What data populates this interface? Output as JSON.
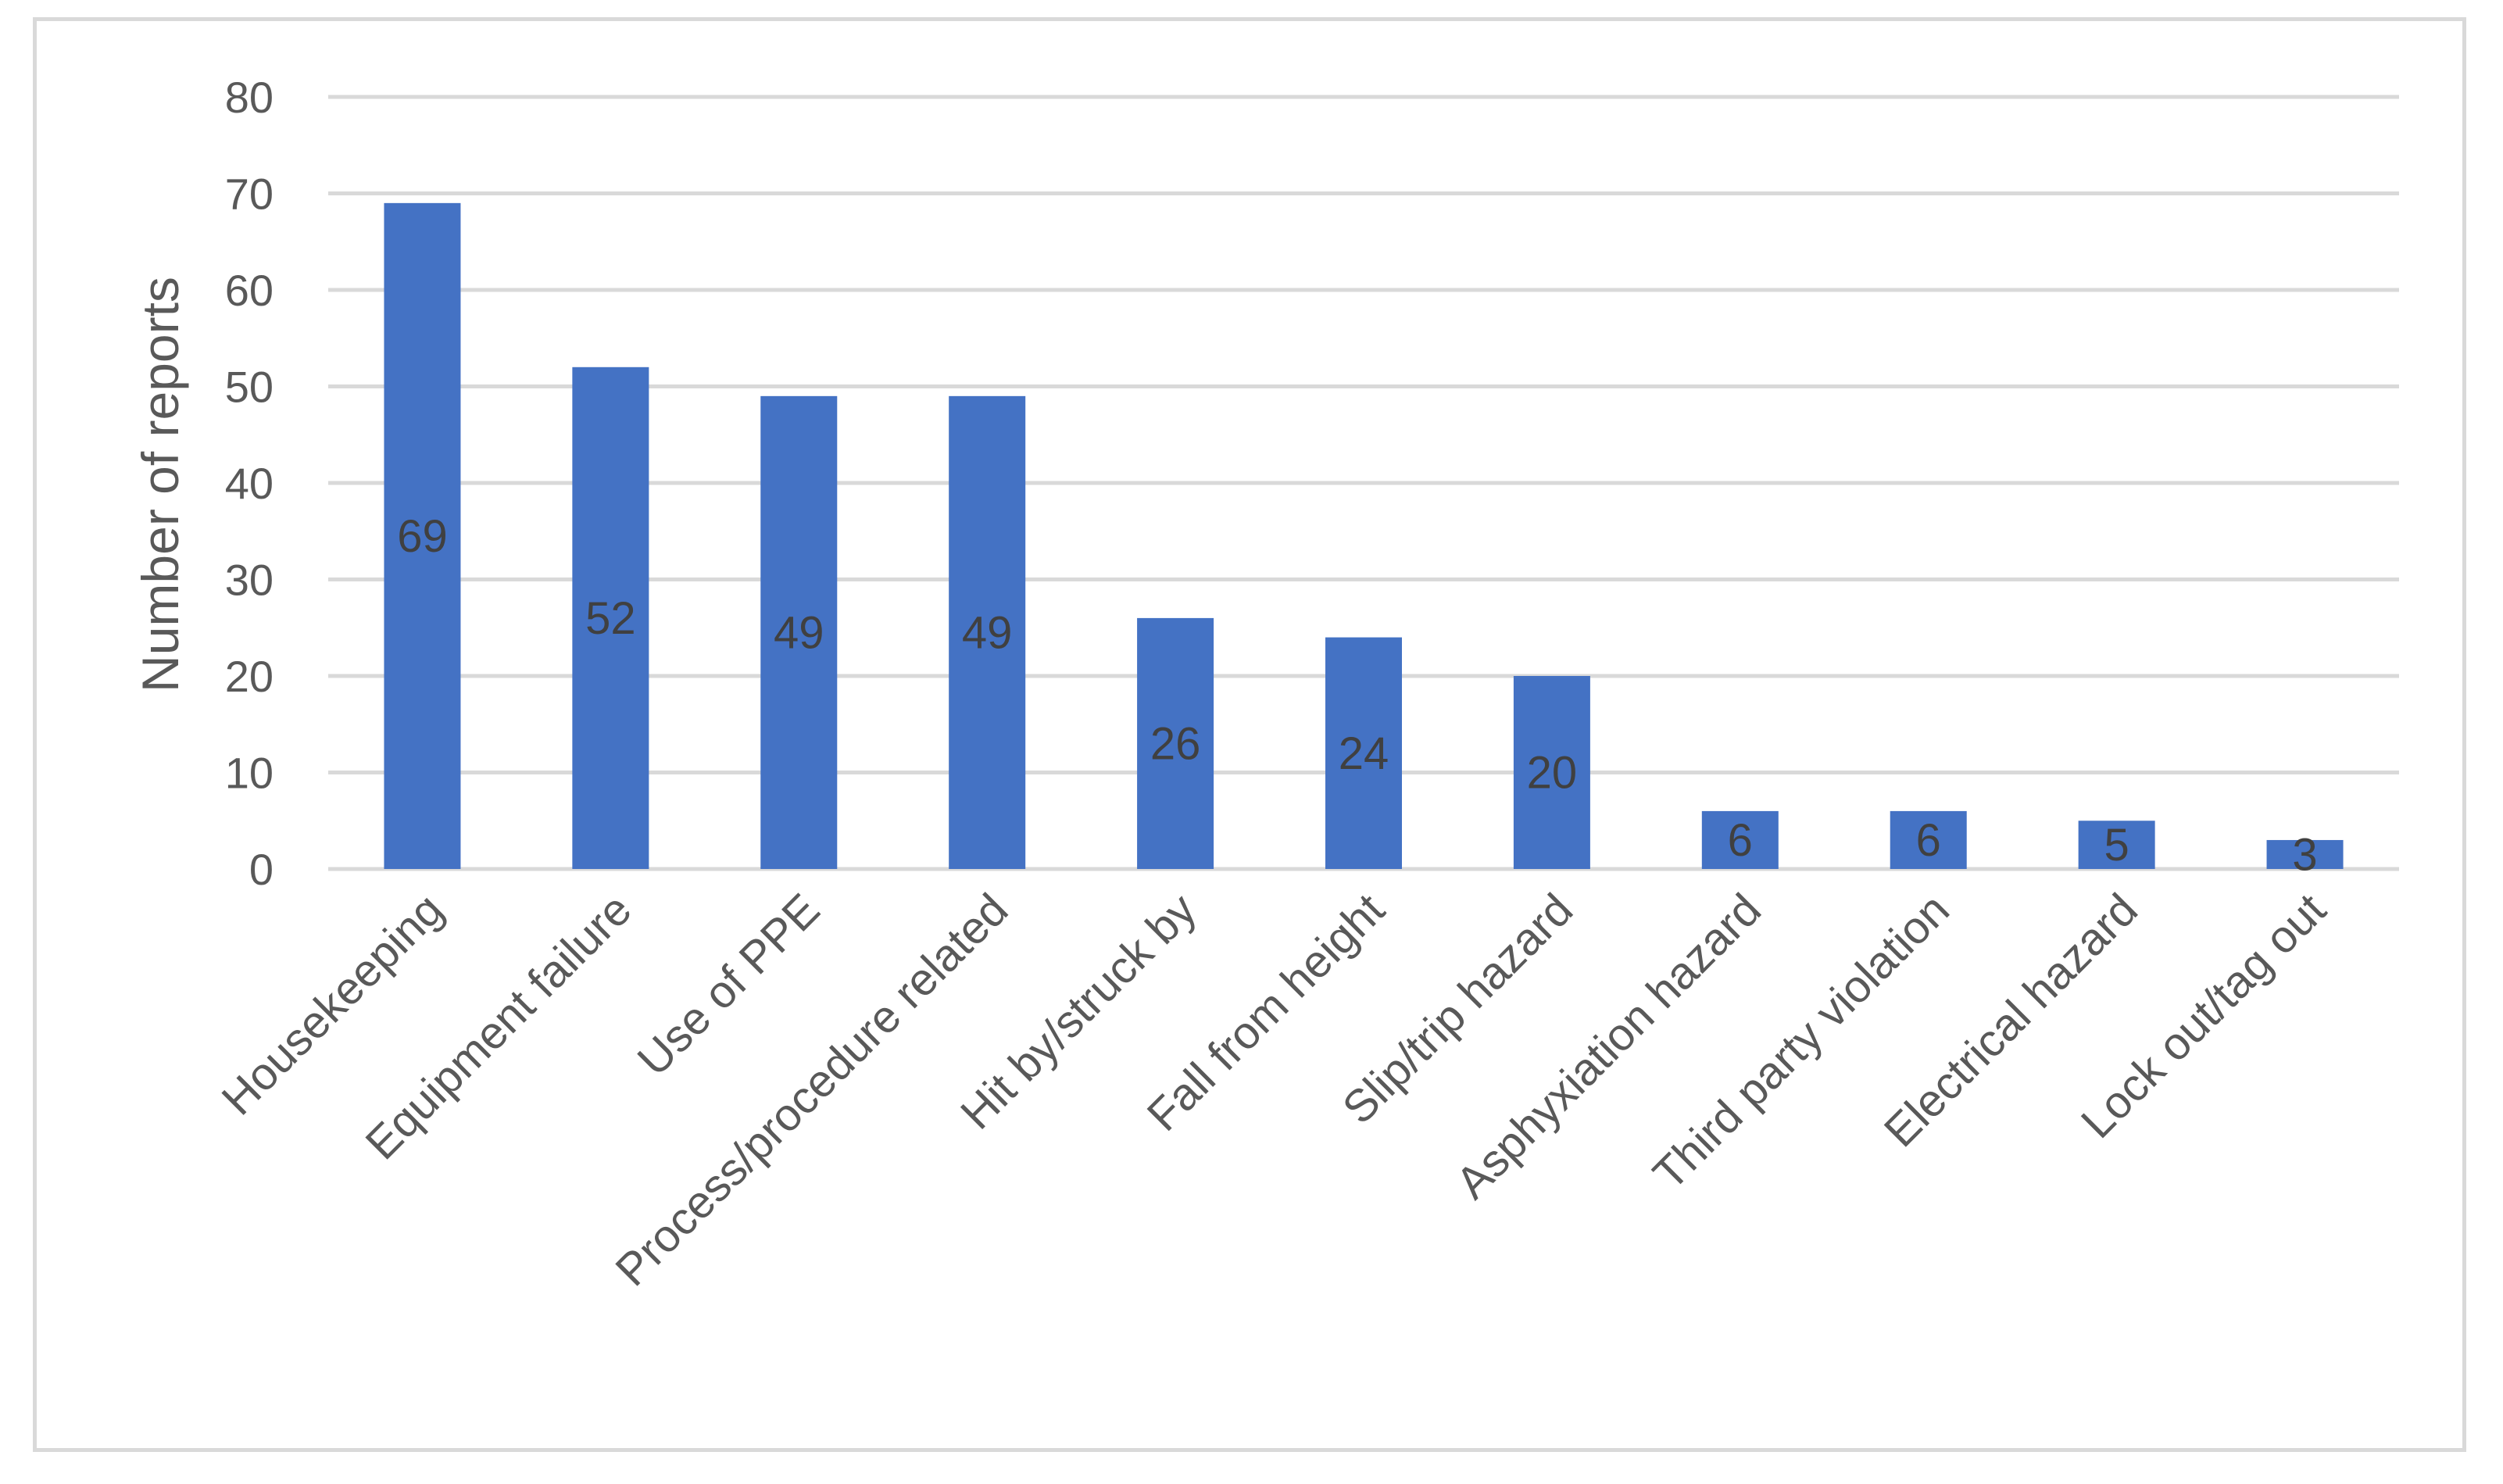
{
  "chart_data": {
    "type": "bar",
    "title": "",
    "xlabel": "",
    "ylabel": "Number of reports",
    "ylim": [
      0,
      80
    ],
    "yticks": [
      0,
      10,
      20,
      30,
      40,
      50,
      60,
      70,
      80
    ],
    "grid": true,
    "legend": "none",
    "bar_color": "#4472c4",
    "grid_color": "#d9d9d9",
    "categories": [
      "Housekeeping",
      "Equipment failure",
      "Use of PPE",
      "Process/procedure related",
      "Hit by/struck by",
      "Fall from height",
      "Slip/trip hazard",
      "Asphyxiation hazard",
      "Third party violation",
      "Electrical hazard",
      "Lock out/tag out"
    ],
    "values": [
      69,
      52,
      49,
      49,
      26,
      24,
      20,
      6,
      6,
      5,
      3
    ],
    "data_labels": [
      "69",
      "52",
      "49",
      "49",
      "26",
      "24",
      "20",
      "6",
      "6",
      "5",
      "3"
    ]
  }
}
